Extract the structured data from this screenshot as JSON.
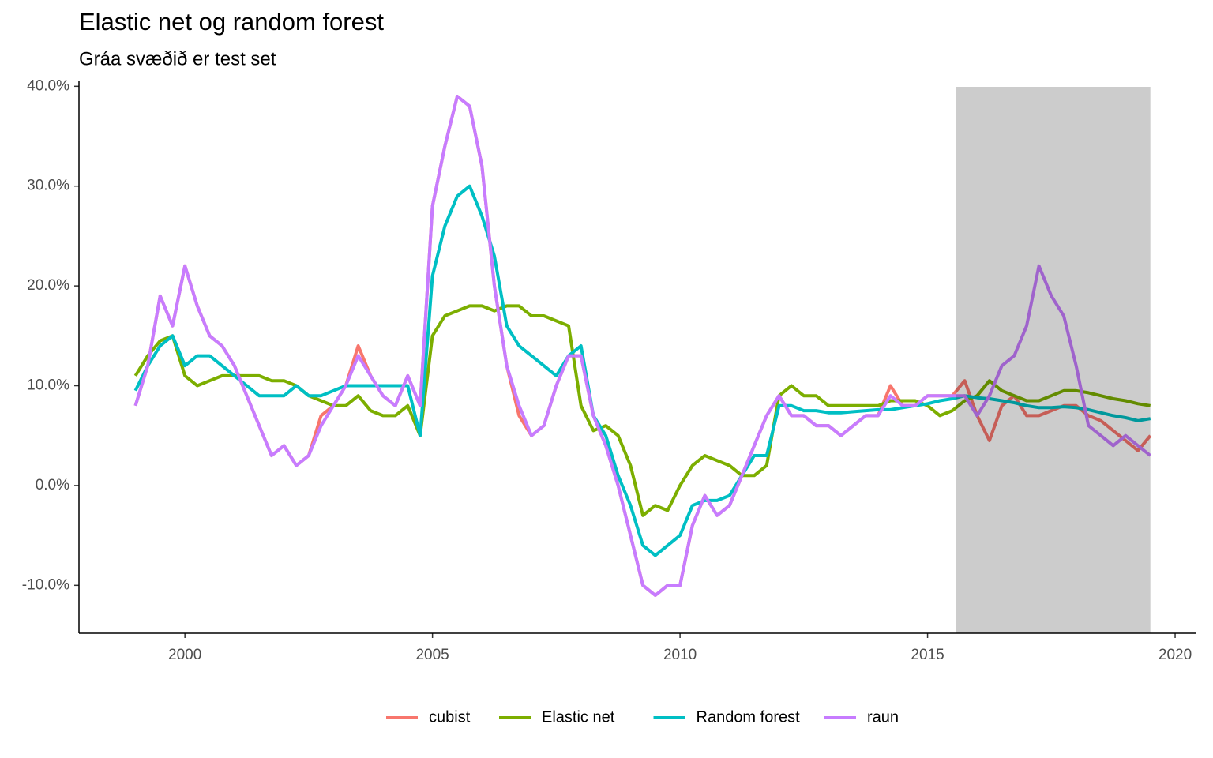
{
  "chart_data": {
    "type": "line",
    "title": "Elastic net og random forest",
    "subtitle": "Gráa svæðið er test set",
    "x": [
      1999.0,
      1999.25,
      1999.5,
      1999.75,
      2000.0,
      2000.25,
      2000.5,
      2000.75,
      2001.0,
      2001.25,
      2001.5,
      2001.75,
      2002.0,
      2002.25,
      2002.5,
      2002.75,
      2003.0,
      2003.25,
      2003.5,
      2003.75,
      2004.0,
      2004.25,
      2004.5,
      2004.75,
      2005.0,
      2005.25,
      2005.5,
      2005.75,
      2006.0,
      2006.25,
      2006.5,
      2006.75,
      2007.0,
      2007.25,
      2007.5,
      2007.75,
      2008.0,
      2008.25,
      2008.5,
      2008.75,
      2009.0,
      2009.25,
      2009.5,
      2009.75,
      2010.0,
      2010.25,
      2010.5,
      2010.75,
      2011.0,
      2011.25,
      2011.5,
      2011.75,
      2012.0,
      2012.25,
      2012.5,
      2012.75,
      2013.0,
      2013.25,
      2013.5,
      2013.75,
      2014.0,
      2014.25,
      2014.5,
      2014.75,
      2015.0,
      2015.25,
      2015.5,
      2015.75,
      2016.0,
      2016.25,
      2016.5,
      2016.75,
      2017.0,
      2017.25,
      2017.5,
      2017.75,
      2018.0,
      2018.25,
      2018.5,
      2018.75,
      2019.0,
      2019.25,
      2019.5
    ],
    "series": [
      {
        "name": "cubist",
        "color": "#F8766D",
        "values": [
          8,
          12,
          19,
          16,
          22,
          18,
          15,
          14,
          12,
          9,
          6,
          3,
          4,
          2,
          3,
          7,
          8,
          10,
          14,
          11,
          9,
          8,
          11,
          8,
          28,
          34,
          39,
          38,
          32,
          20,
          12,
          7,
          5,
          6,
          10,
          13,
          13,
          7,
          4,
          0,
          -5,
          -10,
          -11,
          -10,
          -10,
          -4,
          -1,
          -3,
          -2,
          1,
          4,
          7,
          9,
          7,
          7,
          6,
          6,
          5,
          6,
          7,
          7,
          10,
          8,
          8,
          9,
          9,
          9,
          10.5,
          7,
          4.5,
          8,
          9,
          7,
          7,
          7.5,
          8,
          8,
          7,
          6.5,
          5.5,
          4.5,
          3.5,
          5
        ]
      },
      {
        "name": "Elastic net",
        "color": "#7CAE00",
        "values": [
          11,
          13,
          14.5,
          15,
          11,
          10,
          10.5,
          11,
          11,
          11,
          11,
          10.5,
          10.5,
          10,
          9,
          8.5,
          8,
          8,
          9,
          7.5,
          7,
          7,
          8,
          5,
          15,
          17,
          17.5,
          18,
          18,
          17.5,
          18,
          18,
          17,
          17,
          16.5,
          16,
          8,
          5.5,
          6,
          5,
          2,
          -3,
          -2,
          -2.5,
          0,
          2,
          3,
          2.5,
          2,
          1,
          1,
          2,
          9,
          10,
          9,
          9,
          8,
          8,
          8,
          8,
          8,
          8.5,
          8.5,
          8.5,
          8,
          7,
          7.5,
          8.5,
          9,
          10.5,
          9.5,
          9,
          8.5,
          8.5,
          9,
          9.5,
          9.5,
          9.3,
          9,
          8.7,
          8.5,
          8.2,
          8
        ]
      },
      {
        "name": "Random forest",
        "color": "#00BFC4",
        "values": [
          9.5,
          12,
          14,
          15,
          12,
          13,
          13,
          12,
          11,
          10,
          9,
          9,
          9,
          10,
          9,
          9,
          9.5,
          10,
          10,
          10,
          10,
          10,
          10,
          5,
          21,
          26,
          29,
          30,
          27,
          23,
          16,
          14,
          13,
          12,
          11,
          13,
          14,
          7,
          5,
          1,
          -2,
          -6,
          -7,
          -6,
          -5,
          -2,
          -1.5,
          -1.5,
          -1,
          1,
          3,
          3,
          8,
          8,
          7.5,
          7.5,
          7.3,
          7.3,
          7.4,
          7.5,
          7.6,
          7.6,
          7.8,
          8,
          8.2,
          8.5,
          8.7,
          9,
          8.8,
          8.7,
          8.5,
          8.3,
          8,
          7.8,
          7.8,
          7.9,
          7.8,
          7.6,
          7.3,
          7,
          6.8,
          6.5,
          6.7
        ]
      },
      {
        "name": "raun",
        "color": "#C77CFF",
        "values": [
          8,
          12,
          19,
          16,
          22,
          18,
          15,
          14,
          12,
          9,
          6,
          3,
          4,
          2,
          3,
          6,
          8,
          10,
          13,
          11,
          9,
          8,
          11,
          8,
          28,
          34,
          39,
          38,
          32,
          20,
          12,
          8,
          5,
          6,
          10,
          13,
          13,
          7,
          4,
          0,
          -5,
          -10,
          -11,
          -10,
          -10,
          -4,
          -1,
          -3,
          -2,
          1,
          4,
          7,
          9,
          7,
          7,
          6,
          6,
          5,
          6,
          7,
          7,
          9,
          8,
          8,
          9,
          9,
          9,
          9,
          7,
          9,
          12,
          13,
          16,
          22,
          19,
          17,
          12,
          6,
          5,
          4,
          5,
          4,
          3
        ]
      }
    ],
    "shaded_region": [
      2015.58,
      2019.5
    ],
    "xlim": [
      1997.86,
      2020.43
    ],
    "xticks": [
      2000,
      2005,
      2010,
      2015,
      2020
    ],
    "ylim": [
      -14.8,
      40.5
    ],
    "yticks": [
      {
        "value": -10,
        "label": "-10.0%"
      },
      {
        "value": 0,
        "label": "0.0%"
      },
      {
        "value": 10,
        "label": "10.0%"
      },
      {
        "value": 20,
        "label": "20.0%"
      },
      {
        "value": 30,
        "label": "30.0%"
      },
      {
        "value": 40,
        "label": "40.0%"
      }
    ],
    "grid": false,
    "legend": "bottom"
  }
}
